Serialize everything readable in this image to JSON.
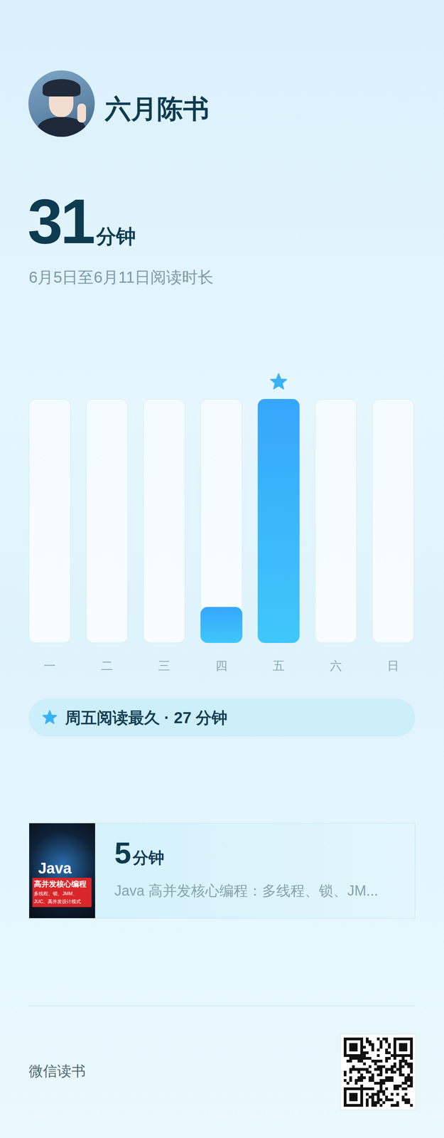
{
  "chart_data": {
    "type": "bar",
    "title": "6月5日至6月11日阅读时长",
    "categories": [
      "一",
      "二",
      "三",
      "四",
      "五",
      "六",
      "日"
    ],
    "values": [
      0,
      0,
      0,
      4,
      27,
      0,
      0
    ],
    "color": "#36a6fb",
    "ylim": [
      0,
      27
    ],
    "tick_labels": "x",
    "grid": false
  },
  "user": {
    "name": "六月陈书"
  },
  "total": {
    "value": 31,
    "unit": "分钟"
  },
  "highlight": {
    "label": "周五阅读最久 · ",
    "value": 27,
    "unit": " 分钟"
  },
  "book": {
    "minutes": 5,
    "unit": "分钟",
    "title": "Java 高并发核心编程：多线程、锁、JM...",
    "cover": {
      "title": "Java",
      "subtitle": "高并发核心编程",
      "detail": "多线程、锁、JMM、JUC、高并发设计模式"
    }
  },
  "footer": {
    "brand": "微信读书"
  }
}
